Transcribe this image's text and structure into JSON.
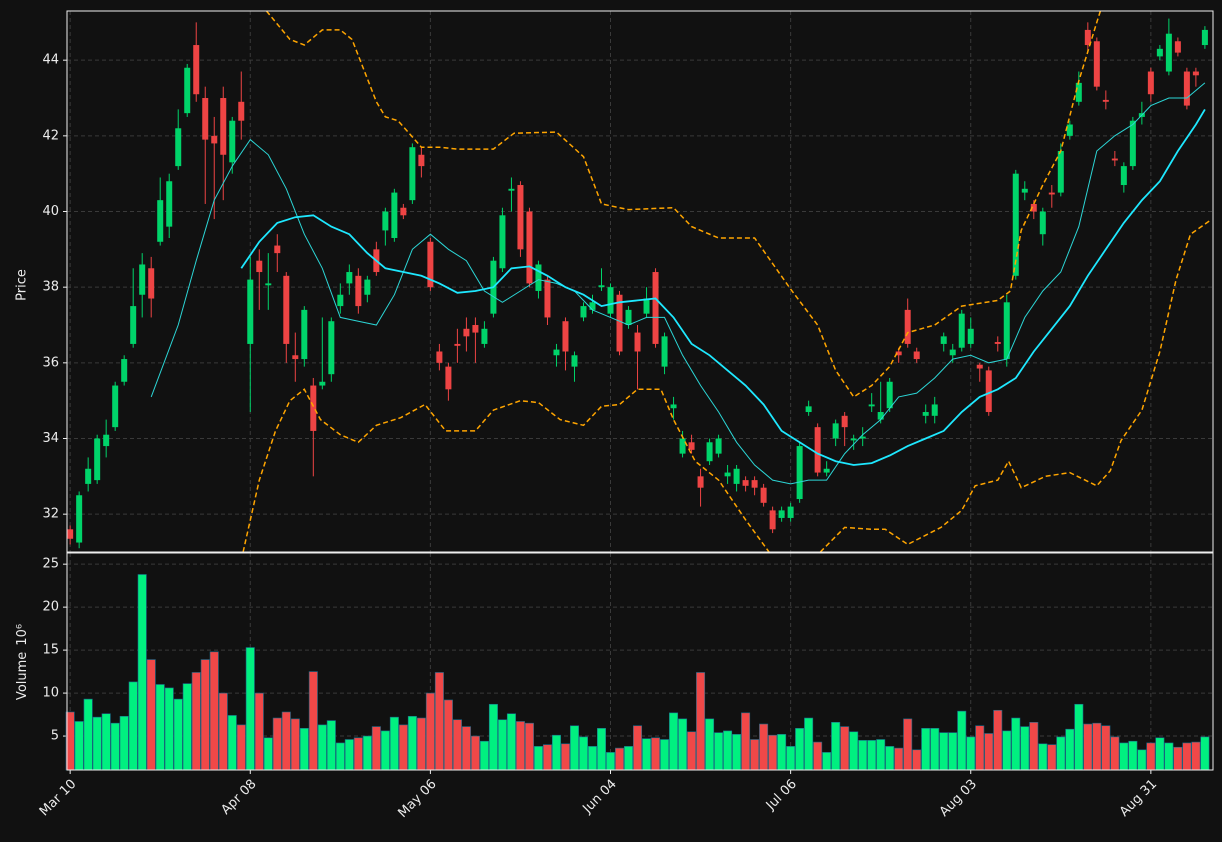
{
  "chart_data": {
    "type": "candlestick",
    "ylabel": "Price",
    "volume_label": "Volume",
    "volume_unit": "10⁶",
    "up_color": "#00d46a",
    "down_color": "#ee4444",
    "volume_up_color": "#00f080",
    "volume_down_color": "#f04848",
    "grid": true,
    "xlim": [
      -0.35,
      126.9
    ],
    "xticks": [
      {
        "value": 0,
        "label": "Mar 10"
      },
      {
        "value": 20,
        "label": "Apr 08"
      },
      {
        "value": 40,
        "label": "May 06"
      },
      {
        "value": 60,
        "label": "Jun 04"
      },
      {
        "value": 80,
        "label": "Jul 06"
      },
      {
        "value": 100,
        "label": "Aug 03"
      },
      {
        "value": 120,
        "label": "Aug 31"
      }
    ],
    "ylim": [
      31.0,
      45.3
    ],
    "yticks": [
      32,
      34,
      36,
      38,
      40,
      42,
      44
    ],
    "volume_ylim": [
      1.05,
      26.3
    ],
    "volume_yticks": [
      5,
      10,
      15,
      20,
      25
    ],
    "open": [
      31.6,
      31.25,
      32.8,
      32.9,
      33.8,
      34.3,
      35.5,
      36.5,
      37.8,
      38.5,
      39.2,
      39.6,
      41.2,
      42.6,
      44.4,
      43.0,
      42.0,
      43.0,
      41.3,
      42.9,
      36.5,
      38.7,
      38.05,
      39.1,
      38.3,
      36.2,
      36.1,
      35.4,
      35.4,
      35.7,
      37.5,
      38.1,
      38.3,
      37.8,
      39.0,
      39.5,
      39.3,
      40.1,
      40.3,
      41.5,
      39.2,
      36.3,
      35.9,
      36.5,
      36.9,
      37.0,
      36.5,
      37.3,
      38.5,
      40.55,
      40.7,
      40.0,
      37.9,
      38.2,
      36.2,
      37.1,
      35.9,
      37.2,
      37.4,
      38.0,
      37.3,
      37.8,
      37.0,
      36.8,
      37.3,
      38.4,
      35.9,
      34.8,
      33.6,
      33.9,
      33.0,
      33.4,
      33.6,
      33.0,
      32.8,
      32.9,
      32.9,
      32.7,
      32.1,
      31.9,
      31.9,
      32.4,
      34.7,
      34.3,
      33.1,
      34.0,
      34.6,
      33.95,
      34.0,
      34.85,
      34.5,
      34.8,
      36.3,
      37.4,
      36.3,
      34.6,
      34.6,
      36.5,
      36.2,
      36.4,
      36.5,
      35.95,
      35.8,
      36.55,
      36.1,
      38.3,
      40.5,
      40.2,
      39.4,
      40.5,
      40.5,
      42.0,
      42.9,
      44.8,
      44.5,
      42.95,
      41.4,
      40.7,
      41.2,
      42.5,
      43.7,
      44.1,
      43.7,
      44.5,
      43.7,
      43.7,
      44.4
    ],
    "high": [
      31.7,
      32.6,
      33.5,
      34.1,
      34.5,
      35.5,
      36.2,
      38.5,
      38.9,
      38.8,
      40.9,
      41.0,
      42.7,
      43.9,
      45.0,
      43.3,
      42.5,
      43.3,
      42.5,
      43.7,
      38.8,
      39.0,
      38.9,
      39.4,
      38.4,
      36.8,
      37.5,
      35.6,
      37.2,
      37.2,
      38.1,
      38.6,
      38.5,
      38.3,
      39.2,
      40.1,
      40.6,
      40.2,
      41.8,
      41.7,
      39.3,
      36.5,
      36.0,
      36.9,
      37.2,
      37.2,
      37.1,
      38.8,
      40.1,
      40.9,
      40.8,
      40.1,
      38.7,
      38.3,
      36.5,
      37.2,
      36.3,
      37.6,
      37.8,
      38.5,
      38.1,
      37.9,
      37.5,
      37.0,
      38.0,
      38.5,
      36.8,
      35.1,
      34.2,
      34.1,
      33.2,
      34.0,
      34.1,
      33.3,
      33.3,
      33.0,
      33.0,
      32.8,
      32.2,
      32.2,
      32.3,
      33.9,
      35.0,
      34.4,
      33.4,
      34.5,
      34.7,
      34.1,
      34.3,
      35.2,
      35.5,
      35.6,
      36.4,
      37.7,
      36.4,
      34.9,
      35.1,
      36.8,
      36.5,
      37.4,
      37.2,
      36.0,
      35.9,
      36.7,
      37.8,
      41.1,
      40.8,
      40.3,
      40.1,
      40.7,
      41.8,
      42.4,
      43.7,
      45.0,
      44.6,
      43.2,
      41.6,
      41.3,
      42.5,
      42.9,
      43.8,
      44.4,
      45.1,
      44.6,
      43.8,
      43.8,
      44.9
    ],
    "low": [
      31.2,
      31.1,
      32.6,
      32.8,
      33.5,
      34.2,
      35.4,
      36.4,
      37.2,
      37.2,
      39.1,
      39.3,
      41.1,
      42.5,
      42.9,
      40.2,
      39.8,
      40.3,
      41.0,
      41.9,
      34.7,
      37.4,
      37.4,
      38.4,
      36.0,
      35.5,
      35.9,
      33.0,
      35.3,
      35.5,
      37.3,
      37.8,
      37.3,
      37.6,
      38.3,
      39.1,
      39.2,
      39.8,
      40.2,
      40.9,
      37.9,
      35.8,
      35.0,
      36.0,
      36.3,
      36.0,
      36.4,
      37.2,
      38.4,
      40.0,
      38.8,
      38.0,
      37.7,
      37.0,
      35.9,
      35.8,
      35.5,
      37.1,
      37.3,
      37.9,
      37.2,
      36.2,
      36.9,
      35.3,
      37.2,
      36.4,
      35.7,
      34.5,
      33.5,
      33.6,
      32.2,
      33.3,
      33.5,
      32.8,
      32.6,
      32.6,
      32.5,
      32.2,
      31.5,
      31.8,
      31.8,
      32.3,
      34.6,
      33.0,
      33.0,
      33.8,
      33.8,
      33.7,
      33.8,
      34.7,
      34.4,
      34.7,
      36.0,
      36.4,
      36.0,
      34.4,
      34.4,
      36.3,
      36.0,
      36.3,
      36.4,
      35.5,
      34.6,
      36.3,
      35.9,
      38.2,
      40.3,
      39.8,
      39.1,
      40.1,
      40.4,
      41.9,
      42.8,
      44.2,
      43.2,
      42.7,
      41.2,
      40.5,
      41.1,
      42.3,
      42.9,
      44.0,
      43.6,
      44.1,
      42.7,
      43.3,
      44.3
    ],
    "close": [
      31.35,
      32.5,
      33.2,
      34.0,
      34.1,
      35.4,
      36.1,
      37.5,
      38.6,
      37.7,
      40.3,
      40.8,
      42.2,
      43.8,
      43.1,
      41.9,
      41.8,
      41.5,
      42.4,
      42.4,
      38.2,
      38.4,
      38.1,
      38.9,
      36.5,
      36.1,
      37.4,
      34.2,
      35.5,
      37.1,
      37.8,
      38.4,
      37.5,
      38.2,
      38.4,
      40.0,
      40.5,
      39.9,
      41.7,
      41.2,
      38.0,
      36.0,
      35.3,
      36.45,
      36.7,
      36.8,
      36.9,
      38.7,
      39.9,
      40.6,
      39.0,
      38.1,
      38.6,
      37.2,
      36.35,
      36.3,
      36.2,
      37.5,
      37.6,
      38.05,
      38.0,
      36.3,
      37.4,
      36.3,
      37.7,
      36.5,
      36.7,
      34.9,
      34.0,
      33.7,
      32.7,
      33.9,
      34.0,
      33.1,
      33.2,
      32.75,
      32.7,
      32.3,
      31.6,
      32.1,
      32.2,
      33.8,
      34.85,
      33.1,
      33.2,
      34.4,
      34.3,
      34.0,
      34.05,
      34.9,
      34.7,
      35.5,
      36.2,
      36.5,
      36.1,
      34.7,
      34.9,
      36.7,
      36.35,
      37.3,
      36.9,
      35.85,
      34.7,
      36.5,
      37.6,
      41.0,
      40.6,
      40.0,
      40.0,
      40.45,
      41.6,
      42.3,
      43.4,
      44.4,
      43.3,
      42.9,
      41.35,
      41.2,
      42.4,
      42.6,
      43.1,
      44.3,
      44.7,
      44.2,
      42.8,
      43.6,
      44.8
    ],
    "volume": [
      7.8,
      6.7,
      9.3,
      7.2,
      7.6,
      6.5,
      7.3,
      11.3,
      23.8,
      13.9,
      11.0,
      10.6,
      9.3,
      11.1,
      12.4,
      13.9,
      14.8,
      10.0,
      7.4,
      6.3,
      15.3,
      10.0,
      4.8,
      7.1,
      7.8,
      7.0,
      5.9,
      12.5,
      6.3,
      6.8,
      4.2,
      4.6,
      4.8,
      5.0,
      6.1,
      5.6,
      7.2,
      6.3,
      7.3,
      7.1,
      10.0,
      12.4,
      9.2,
      6.9,
      6.1,
      5.0,
      4.4,
      8.7,
      6.9,
      7.6,
      6.7,
      6.5,
      3.8,
      4.0,
      5.1,
      4.1,
      6.2,
      4.9,
      3.8,
      5.9,
      3.1,
      3.6,
      3.8,
      6.2,
      4.7,
      4.8,
      4.6,
      7.7,
      7.0,
      5.5,
      12.4,
      7.0,
      5.4,
      5.6,
      5.2,
      7.7,
      4.6,
      6.4,
      5.1,
      5.2,
      3.8,
      5.9,
      7.1,
      4.3,
      3.1,
      6.6,
      6.1,
      5.5,
      4.5,
      4.5,
      4.6,
      3.8,
      3.6,
      7.0,
      3.4,
      5.9,
      5.9,
      5.4,
      5.4,
      7.9,
      4.9,
      6.2,
      5.3,
      8.0,
      5.6,
      7.1,
      6.1,
      6.6,
      4.1,
      4.0,
      4.9,
      5.8,
      8.7,
      6.4,
      6.5,
      6.2,
      4.9,
      4.2,
      4.4,
      3.4,
      4.2,
      4.8,
      4.2,
      3.7,
      4.2,
      4.3,
      4.9
    ],
    "lines": [
      {
        "color": "#2cd6d6",
        "width": 1,
        "dash": false,
        "x": [
          9,
          12,
          14,
          16,
          18,
          20,
          22,
          24,
          26,
          28,
          30,
          32,
          34,
          36,
          38,
          40,
          42,
          44,
          46,
          48,
          50,
          52,
          54,
          56,
          58,
          60,
          62,
          64,
          66,
          68,
          70,
          72,
          74,
          76,
          78,
          80,
          82,
          84,
          86,
          88,
          90,
          92,
          94,
          96,
          98,
          100,
          102,
          104,
          106,
          108,
          110,
          112,
          114,
          116,
          118,
          120,
          122,
          124,
          126
        ],
        "values": [
          35.1,
          37.0,
          38.7,
          40.3,
          41.2,
          41.9,
          41.5,
          40.6,
          39.4,
          38.5,
          37.2,
          37.1,
          37.0,
          37.8,
          39.0,
          39.4,
          39.0,
          38.7,
          37.9,
          37.6,
          37.9,
          38.2,
          38.1,
          37.9,
          37.4,
          37.2,
          37.0,
          37.2,
          37.2,
          36.2,
          35.4,
          34.7,
          33.9,
          33.3,
          32.9,
          32.8,
          32.9,
          32.9,
          33.6,
          34.1,
          34.5,
          35.1,
          35.2,
          35.6,
          36.1,
          36.2,
          36.0,
          36.1,
          37.2,
          37.9,
          38.4,
          39.6,
          41.6,
          42.0,
          42.3,
          42.8,
          43.0,
          43.0,
          43.4
        ]
      },
      {
        "color": "#1ee8ff",
        "width": 1.8,
        "dash": false,
        "x": [
          19,
          21,
          23,
          25,
          27,
          29,
          31,
          33,
          35,
          37,
          39,
          41,
          43,
          45,
          47,
          49,
          51,
          53,
          55,
          57,
          59,
          61,
          63,
          65,
          67,
          69,
          71,
          73,
          75,
          77,
          79,
          81,
          83,
          85,
          87,
          89,
          91,
          93,
          95,
          97,
          99,
          101,
          103,
          105,
          107,
          109,
          111,
          113,
          115,
          117,
          119,
          121,
          123,
          125,
          126
        ],
        "values": [
          38.5,
          39.2,
          39.7,
          39.85,
          39.9,
          39.6,
          39.4,
          38.9,
          38.5,
          38.4,
          38.3,
          38.1,
          37.85,
          37.9,
          38.0,
          38.5,
          38.55,
          38.3,
          38.0,
          37.8,
          37.5,
          37.6,
          37.65,
          37.7,
          37.2,
          36.5,
          36.2,
          35.8,
          35.4,
          34.9,
          34.2,
          33.9,
          33.6,
          33.4,
          33.3,
          33.35,
          33.55,
          33.8,
          34.0,
          34.2,
          34.7,
          35.1,
          35.3,
          35.6,
          36.3,
          36.9,
          37.5,
          38.3,
          39.0,
          39.7,
          40.3,
          40.8,
          41.6,
          42.3,
          42.7
        ]
      },
      {
        "color": "#ffa500",
        "width": 1.5,
        "dash": true,
        "x": [
          21.8,
          24.4,
          26,
          28,
          30,
          31.3,
          34,
          35,
          36.4,
          39,
          41,
          43,
          47,
          49.3,
          54,
          57,
          59,
          62,
          67,
          69,
          72,
          76,
          80,
          83,
          85,
          87,
          89,
          91,
          93,
          96,
          99,
          103,
          104.4,
          105.6,
          108,
          110,
          112,
          114,
          114.4
        ],
        "values": [
          45.3,
          44.55,
          44.4,
          44.8,
          44.8,
          44.55,
          42.9,
          42.5,
          42.4,
          41.7,
          41.7,
          41.65,
          41.65,
          42.07,
          42.1,
          41.45,
          40.2,
          40.05,
          40.1,
          39.6,
          39.3,
          39.3,
          37.95,
          37.0,
          35.8,
          35.1,
          35.4,
          35.9,
          36.8,
          37.0,
          37.5,
          37.65,
          37.9,
          39.5,
          40.7,
          41.6,
          43.45,
          45.0,
          45.3
        ]
      },
      {
        "color": "#ffa500",
        "width": 1.5,
        "dash": true,
        "x": [
          19.2,
          21,
          22.8,
          24.4,
          26,
          27.8,
          30,
          32,
          34,
          36.7,
          39.4,
          41.7,
          45,
          47,
          50,
          52,
          54.4,
          57,
          59,
          61,
          63,
          65.6,
          67,
          69.4,
          72,
          75,
          77.6,
          null,
          83.3,
          86,
          89,
          90.5,
          93,
          96.7,
          99,
          100.5,
          103,
          104.2,
          105.6,
          108.3,
          111,
          114,
          115.5,
          116.7,
          119,
          121,
          122.8,
          124.4,
          126.5
        ],
        "values": [
          31.0,
          32.9,
          34.2,
          35.0,
          35.3,
          34.5,
          34.1,
          33.9,
          34.35,
          34.55,
          34.9,
          34.2,
          34.2,
          34.75,
          35.0,
          34.95,
          34.5,
          34.35,
          34.85,
          34.9,
          35.3,
          35.3,
          34.5,
          33.4,
          32.9,
          31.85,
          31.0,
          null,
          31.0,
          31.65,
          31.6,
          31.6,
          31.2,
          31.65,
          32.1,
          32.75,
          32.9,
          33.4,
          32.7,
          33.0,
          33.1,
          32.75,
          33.15,
          33.95,
          34.75,
          36.3,
          38.2,
          39.4,
          39.75
        ]
      }
    ]
  }
}
